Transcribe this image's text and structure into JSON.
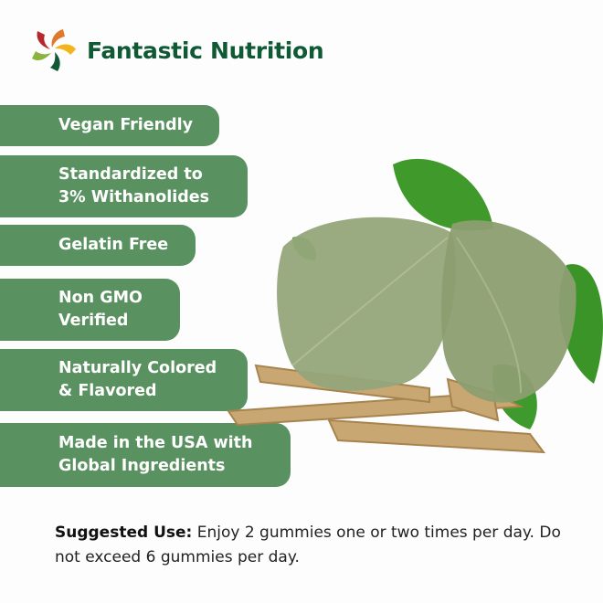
{
  "brand": {
    "name": "Fantastic Nutrition",
    "colors": [
      "#b8272d",
      "#e07a2a",
      "#f2b51c",
      "#8ab43f",
      "#0f5a35"
    ]
  },
  "features": [
    {
      "line1": "Vegan Friendly",
      "line2": ""
    },
    {
      "line1": "Standardized to",
      "line2": "3% Withanolides"
    },
    {
      "line1": "Gelatin Free",
      "line2": ""
    },
    {
      "line1": "Non GMO",
      "line2": "Verified"
    },
    {
      "line1": "Naturally Colored",
      "line2": "& Flavored"
    },
    {
      "line1": "Made in the USA with",
      "line2": "Global Ingredients"
    }
  ],
  "accent_color": "#5a9160",
  "usage": {
    "label": "Suggested Use:",
    "text": " Enjoy 2 gummies one or two times per day. Do not exceed 6 gummies per day."
  }
}
